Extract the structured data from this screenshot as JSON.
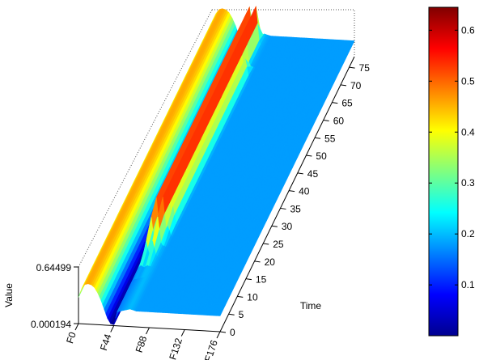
{
  "chart_data": {
    "type": "surface3d",
    "z_axis": {
      "label": "Value",
      "ticks": [
        "0.000194",
        "0.64499"
      ]
    },
    "x_axis": {
      "ticks": [
        "F0",
        "F44",
        "F88",
        "F132",
        "F176"
      ]
    },
    "y_axis": {
      "label": "Time",
      "ticks": [
        "0",
        "5",
        "10",
        "15",
        "20",
        "25",
        "30",
        "35",
        "40",
        "45",
        "50",
        "55",
        "60",
        "65",
        "70",
        "75"
      ]
    },
    "colorbar": {
      "ticks": [
        "0.1",
        "0.2",
        "0.3",
        "0.4",
        "0.5",
        "0.6"
      ],
      "range": [
        0.000194,
        0.64499
      ],
      "colormap": "jet"
    },
    "surface_profile": {
      "feature_index": [
        0,
        4,
        8,
        12,
        16,
        20,
        24,
        28,
        32,
        36,
        40,
        44,
        48,
        56,
        64,
        72,
        80,
        88,
        100,
        112,
        124,
        136,
        148,
        160,
        176
      ],
      "value": [
        0.3,
        0.4,
        0.45,
        0.46,
        0.45,
        0.42,
        0.36,
        0.28,
        0.18,
        0.08,
        0.02,
        0.01,
        0.16,
        0.18,
        0.2,
        0.18,
        0.18,
        0.18,
        0.18,
        0.18,
        0.18,
        0.18,
        0.18,
        0.18,
        0.18
      ]
    },
    "ridges": [
      {
        "feature": 52,
        "peak_value": 0.62,
        "time_range": [
          8,
          75
        ]
      },
      {
        "feature": 60,
        "peak_value": 0.63,
        "time_range": [
          8,
          75
        ]
      },
      {
        "feature": 66,
        "peak_value": 0.4,
        "time_range": [
          12,
          68
        ]
      }
    ]
  }
}
